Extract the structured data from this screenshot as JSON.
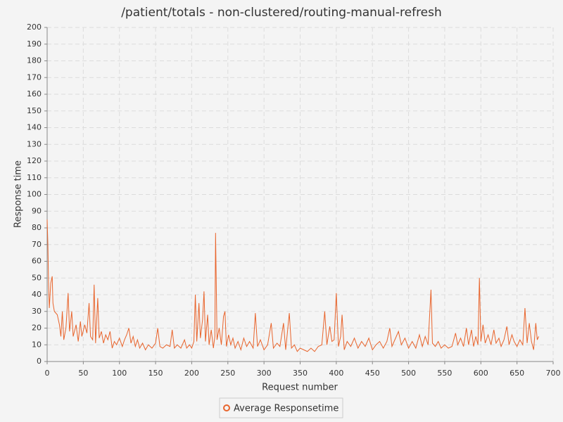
{
  "chart_data": {
    "type": "line",
    "title": "/patient/totals - non-clustered/routing-manual-refresh",
    "x_label": "Request number",
    "y_label": "Response time",
    "x": [
      0,
      1,
      2,
      3,
      5,
      7,
      8,
      10,
      14,
      17,
      19,
      21,
      23,
      26,
      29,
      31,
      34,
      36,
      40,
      43,
      46,
      48,
      52,
      55,
      58,
      60,
      63,
      65,
      67,
      70,
      72,
      75,
      78,
      81,
      84,
      87,
      90,
      93,
      96,
      100,
      104,
      107,
      110,
      113,
      116,
      119,
      122,
      125,
      128,
      132,
      136,
      140,
      145,
      150,
      153,
      156,
      160,
      165,
      170,
      173,
      176,
      180,
      185,
      190,
      193,
      197,
      200,
      203,
      205,
      207,
      210,
      212,
      215,
      217,
      219,
      222,
      224,
      227,
      230,
      232,
      233,
      235,
      238,
      241,
      244,
      246,
      248,
      251,
      254,
      257,
      260,
      264,
      268,
      272,
      276,
      280,
      285,
      288,
      291,
      295,
      300,
      305,
      310,
      313,
      318,
      322,
      327,
      330,
      335,
      338,
      342,
      346,
      350,
      355,
      360,
      365,
      370,
      375,
      380,
      384,
      387,
      391,
      394,
      397,
      400,
      403,
      406,
      408,
      411,
      415,
      420,
      425,
      430,
      435,
      440,
      445,
      450,
      455,
      460,
      465,
      470,
      474,
      477,
      482,
      486,
      490,
      495,
      500,
      505,
      510,
      515,
      519,
      523,
      527,
      531,
      533,
      537,
      541,
      545,
      550,
      555,
      560,
      565,
      568,
      572,
      576,
      580,
      583,
      587,
      590,
      593,
      596,
      598,
      600,
      603,
      606,
      610,
      614,
      618,
      621,
      625,
      628,
      632,
      636,
      639,
      643,
      646,
      650,
      654,
      658,
      661,
      664,
      667,
      670,
      673,
      676,
      678,
      680
    ],
    "series": [
      {
        "name": "Average Responsetime",
        "color": "#e8642c",
        "values": [
          85,
          70,
          45,
          32,
          47,
          51,
          35,
          30,
          28,
          22,
          15,
          30,
          13,
          20,
          41,
          18,
          30,
          15,
          22,
          12,
          24,
          15,
          22,
          17,
          35,
          15,
          13,
          46,
          11,
          38,
          14,
          18,
          11,
          16,
          13,
          18,
          8,
          12,
          10,
          14,
          9,
          13,
          16,
          20,
          11,
          15,
          9,
          13,
          8,
          11,
          7,
          10,
          8,
          11,
          20,
          9,
          8,
          10,
          9,
          19,
          8,
          10,
          8,
          13,
          8,
          10,
          8,
          12,
          40,
          12,
          35,
          14,
          25,
          42,
          12,
          28,
          10,
          19,
          8,
          15,
          77,
          13,
          20,
          10,
          27,
          30,
          9,
          16,
          10,
          14,
          8,
          12,
          7,
          14,
          9,
          12,
          8,
          29,
          9,
          13,
          7,
          10,
          23,
          8,
          11,
          9,
          23,
          7,
          29,
          8,
          10,
          6,
          8,
          7,
          6,
          8,
          6,
          9,
          10,
          30,
          10,
          21,
          12,
          13,
          41,
          9,
          15,
          28,
          7,
          12,
          9,
          14,
          8,
          12,
          9,
          14,
          7,
          10,
          12,
          8,
          12,
          20,
          9,
          14,
          18,
          10,
          14,
          8,
          12,
          8,
          16,
          9,
          15,
          10,
          43,
          11,
          9,
          12,
          8,
          10,
          8,
          9,
          17,
          10,
          14,
          9,
          20,
          10,
          19,
          9,
          15,
          10,
          50,
          12,
          22,
          11,
          16,
          10,
          19,
          11,
          14,
          9,
          13,
          21,
          10,
          16,
          12,
          9,
          13,
          10,
          32,
          11,
          23,
          12,
          7,
          23,
          13,
          15
        ]
      }
    ],
    "xlim": [
      0,
      700
    ],
    "xticks": [
      0,
      50,
      100,
      150,
      200,
      250,
      300,
      350,
      400,
      450,
      500,
      550,
      600,
      650,
      700
    ],
    "ylim": [
      0,
      200
    ],
    "yticks": [
      0,
      10,
      20,
      30,
      40,
      50,
      60,
      70,
      80,
      90,
      100,
      110,
      120,
      130,
      140,
      150,
      160,
      170,
      180,
      190,
      200
    ],
    "grid": true,
    "legend": "bottom"
  }
}
